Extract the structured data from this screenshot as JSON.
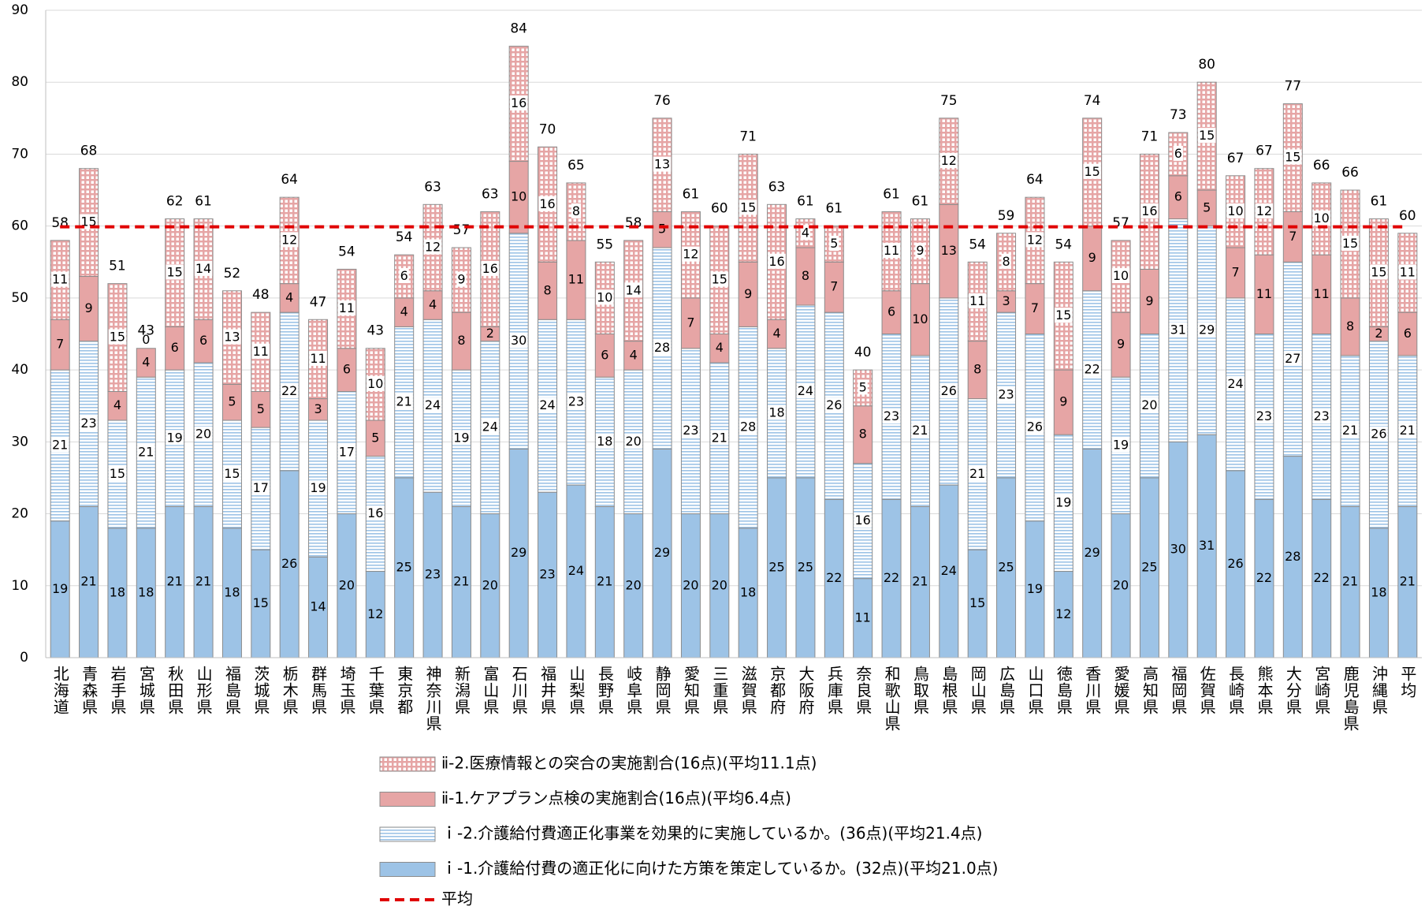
{
  "chart_data": {
    "type": "bar",
    "stacked": true,
    "categories": [
      "北海道",
      "青森県",
      "岩手県",
      "宮城県",
      "秋田県",
      "山形県",
      "福島県",
      "茨城県",
      "栃木県",
      "群馬県",
      "埼玉県",
      "千葉県",
      "東京都",
      "神奈川県",
      "新潟県",
      "富山県",
      "石川県",
      "福井県",
      "山梨県",
      "長野県",
      "岐阜県",
      "静岡県",
      "愛知県",
      "三重県",
      "滋賀県",
      "京都府",
      "大阪府",
      "兵庫県",
      "奈良県",
      "和歌山県",
      "鳥取県",
      "島根県",
      "岡山県",
      "広島県",
      "山口県",
      "徳島県",
      "香川県",
      "愛媛県",
      "高知県",
      "福岡県",
      "佐賀県",
      "長崎県",
      "熊本県",
      "大分県",
      "宮崎県",
      "鹿児島県",
      "沖縄県",
      "平均"
    ],
    "series": [
      {
        "name": "ｉ-1.介護給付費の適正化に向けた方策を策定しているか。(32点)(平均21.0点)",
        "color": "#9dc3e6",
        "fill": "solid",
        "values": [
          19,
          21,
          18,
          18,
          21,
          21,
          18,
          15,
          26,
          14,
          20,
          12,
          25,
          23,
          21,
          20,
          29,
          23,
          24,
          21,
          20,
          29,
          20,
          20,
          18,
          25,
          25,
          22,
          11,
          22,
          21,
          24,
          15,
          25,
          19,
          12,
          29,
          20,
          25,
          30,
          31,
          26,
          22,
          28,
          22,
          21,
          18,
          21
        ]
      },
      {
        "name": "ｉ-2.介護給付費適正化事業を効果的に実施しているか。(36点)(平均21.4点)",
        "color": "#9dc3e6",
        "fill": "stripes",
        "values": [
          21,
          23,
          15,
          21,
          19,
          20,
          15,
          17,
          22,
          19,
          17,
          16,
          21,
          24,
          19,
          24,
          30,
          24,
          23,
          18,
          20,
          28,
          23,
          21,
          28,
          18,
          24,
          26,
          16,
          23,
          21,
          26,
          21,
          23,
          26,
          19,
          22,
          19,
          20,
          31,
          29,
          24,
          23,
          27,
          23,
          21,
          26,
          21
        ]
      },
      {
        "name": "ⅱ-1.ケアプラン点検の実施割合(16点)(平均6.4点)",
        "color": "#e6a5a5",
        "fill": "solid",
        "values": [
          7,
          9,
          4,
          4,
          6,
          6,
          5,
          5,
          4,
          3,
          6,
          5,
          4,
          4,
          8,
          2,
          10,
          8,
          11,
          6,
          4,
          5,
          7,
          4,
          9,
          4,
          8,
          7,
          8,
          6,
          10,
          13,
          8,
          3,
          7,
          9,
          9,
          9,
          9,
          6,
          5,
          7,
          11,
          7,
          11,
          8,
          2,
          6
        ]
      },
      {
        "name": "ⅱ-2.医療情報との突合の実施割合(16点)(平均11.1点)",
        "color": "#e6a5a5",
        "fill": "grid",
        "values": [
          11,
          15,
          15,
          0,
          15,
          14,
          13,
          11,
          12,
          11,
          11,
          10,
          6,
          12,
          9,
          16,
          16,
          16,
          8,
          10,
          14,
          13,
          12,
          15,
          15,
          16,
          4,
          5,
          5,
          11,
          9,
          12,
          11,
          8,
          12,
          15,
          15,
          10,
          16,
          6,
          15,
          10,
          12,
          15,
          10,
          15,
          15,
          11
        ]
      }
    ],
    "totals": [
      58,
      68,
      51,
      43,
      62,
      61,
      52,
      48,
      64,
      47,
      54,
      43,
      54,
      63,
      57,
      63,
      84,
      70,
      65,
      55,
      58,
      76,
      61,
      60,
      71,
      63,
      61,
      61,
      40,
      61,
      61,
      75,
      54,
      59,
      64,
      54,
      74,
      57,
      71,
      73,
      80,
      67,
      67,
      77,
      66,
      66,
      61,
      60
    ],
    "average": {
      "name": "平均",
      "value": 59.9,
      "color": "#e00000"
    },
    "ylim": [
      0,
      90
    ],
    "yticks": [
      0,
      10,
      20,
      30,
      40,
      50,
      60,
      70,
      80,
      90
    ],
    "grid": true
  }
}
